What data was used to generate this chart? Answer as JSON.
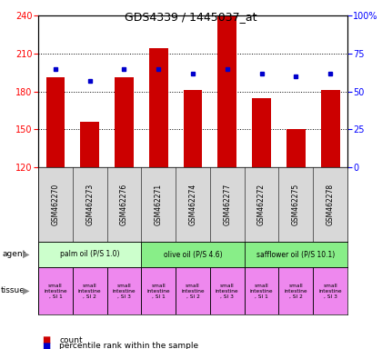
{
  "title": "GDS4339 / 1445037_at",
  "samples": [
    "GSM462270",
    "GSM462273",
    "GSM462276",
    "GSM462271",
    "GSM462274",
    "GSM462277",
    "GSM462272",
    "GSM462275",
    "GSM462278"
  ],
  "counts": [
    191,
    156,
    191,
    214,
    181,
    240,
    175,
    150,
    181
  ],
  "percentiles": [
    65,
    57,
    65,
    65,
    62,
    65,
    62,
    60,
    62
  ],
  "ylim_left": [
    120,
    240
  ],
  "yticks_left": [
    120,
    150,
    180,
    210,
    240
  ],
  "ylim_right": [
    0,
    100
  ],
  "yticks_right": [
    0,
    25,
    50,
    75,
    100
  ],
  "bar_color": "#cc0000",
  "dot_color": "#0000cc",
  "agent_groups": [
    {
      "label": "palm oil (P/S 1.0)",
      "start": 0,
      "end": 3,
      "color": "#ccffcc"
    },
    {
      "label": "olive oil (P/S 4.6)",
      "start": 3,
      "end": 6,
      "color": "#88ee88"
    },
    {
      "label": "safflower oil (P/S 10.1)",
      "start": 6,
      "end": 9,
      "color": "#88ee88"
    }
  ],
  "tissue_color": "#ee88ee",
  "sample_bg_color": "#d8d8d8",
  "legend_count_color": "#cc0000",
  "legend_pct_color": "#0000cc",
  "bg_white": "#ffffff"
}
